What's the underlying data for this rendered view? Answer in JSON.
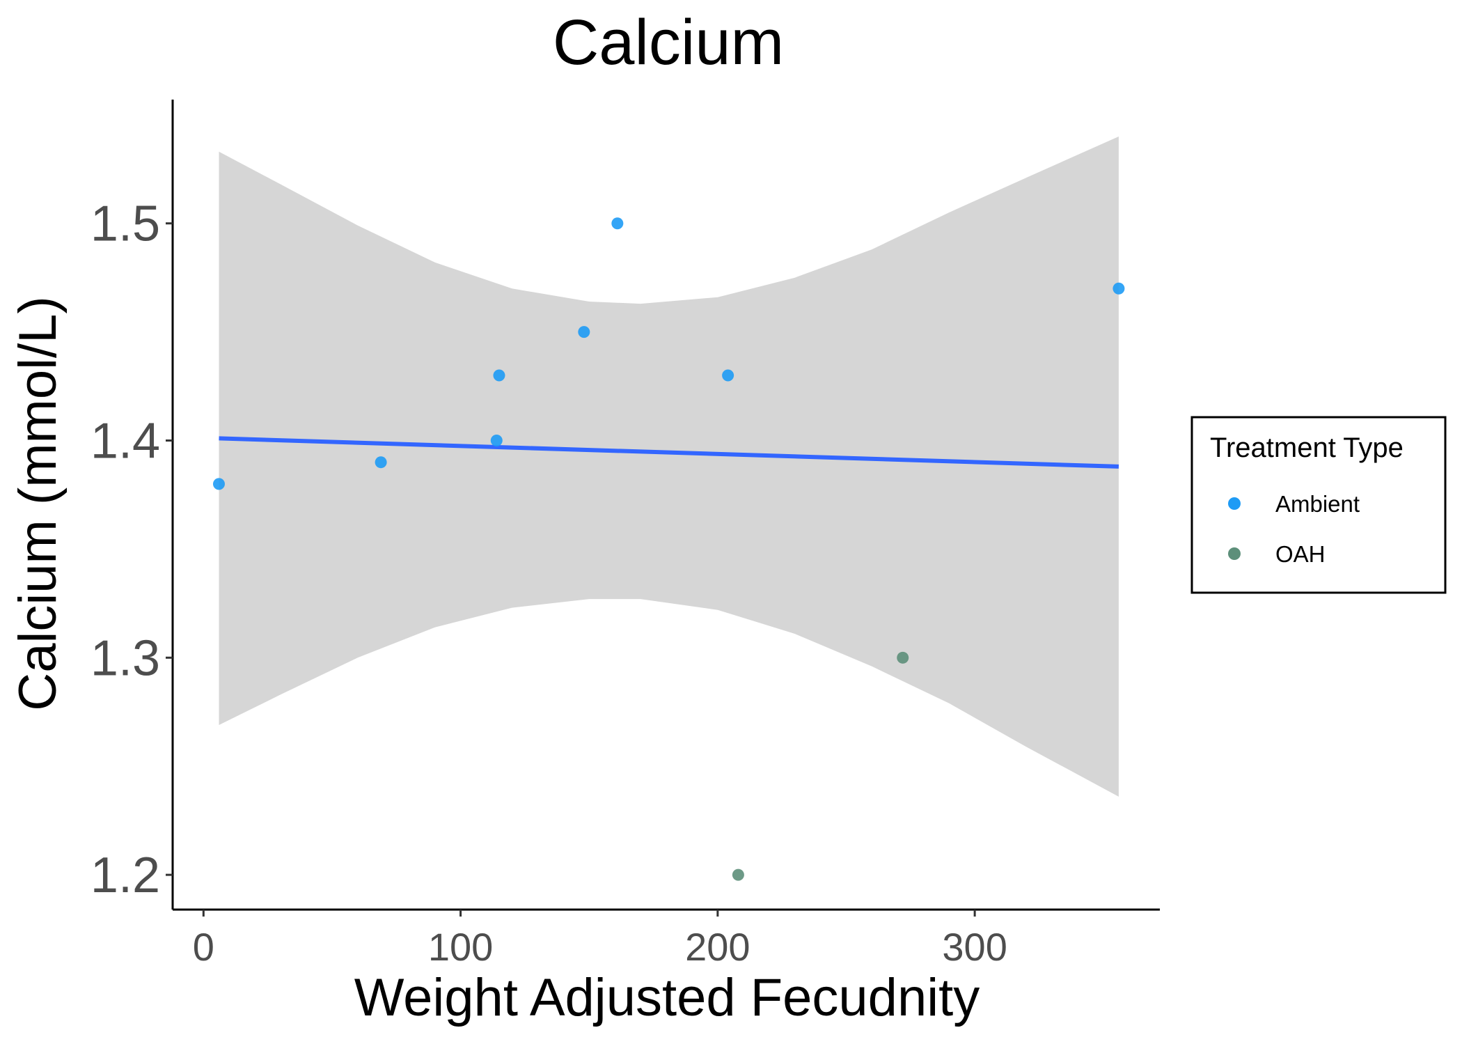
{
  "chart_data": {
    "type": "scatter",
    "title": "Calcium",
    "xlabel": "Weight Adjusted Fecudnity",
    "ylabel": "Calcium (mmol/L)",
    "xlim": [
      -12,
      372
    ],
    "ylim": [
      1.184,
      1.557
    ],
    "x_ticks": [
      0,
      100,
      200,
      300
    ],
    "x_tick_labels": [
      "0",
      "100",
      "200",
      "300"
    ],
    "y_ticks": [
      1.2,
      1.3,
      1.4,
      1.5
    ],
    "y_tick_labels": [
      "1.2",
      "1.3",
      "1.4",
      "1.5"
    ],
    "grid": false,
    "legend": {
      "title": "Treatment Type",
      "placement": "right",
      "entries": [
        {
          "label": "Ambient",
          "color": "#1e9bf5"
        },
        {
          "label": "OAH",
          "color": "#5d8f7a"
        }
      ]
    },
    "series": [
      {
        "name": "Ambient",
        "color": "#1e9bf5",
        "points": [
          {
            "x": 6,
            "y": 1.38
          },
          {
            "x": 69,
            "y": 1.39
          },
          {
            "x": 114,
            "y": 1.4
          },
          {
            "x": 115,
            "y": 1.43
          },
          {
            "x": 148,
            "y": 1.45
          },
          {
            "x": 161,
            "y": 1.5
          },
          {
            "x": 204,
            "y": 1.43
          },
          {
            "x": 356,
            "y": 1.47
          }
        ]
      },
      {
        "name": "OAH",
        "color": "#5d8f7a",
        "points": [
          {
            "x": 208,
            "y": 1.2
          },
          {
            "x": 272,
            "y": 1.3
          }
        ]
      }
    ],
    "trend_line": {
      "method": "linear",
      "color": "#3366ff",
      "points": [
        {
          "x": 6,
          "y": 1.401
        },
        {
          "x": 356,
          "y": 1.388
        }
      ]
    },
    "confidence_band": {
      "color": "#d6d6d6",
      "upper": [
        {
          "x": 6,
          "y": 1.533
        },
        {
          "x": 30,
          "y": 1.518
        },
        {
          "x": 60,
          "y": 1.499
        },
        {
          "x": 90,
          "y": 1.482
        },
        {
          "x": 120,
          "y": 1.47
        },
        {
          "x": 150,
          "y": 1.464
        },
        {
          "x": 170,
          "y": 1.463
        },
        {
          "x": 200,
          "y": 1.466
        },
        {
          "x": 230,
          "y": 1.475
        },
        {
          "x": 260,
          "y": 1.488
        },
        {
          "x": 290,
          "y": 1.505
        },
        {
          "x": 320,
          "y": 1.521
        },
        {
          "x": 356,
          "y": 1.54
        }
      ],
      "lower": [
        {
          "x": 6,
          "y": 1.269
        },
        {
          "x": 30,
          "y": 1.283
        },
        {
          "x": 60,
          "y": 1.3
        },
        {
          "x": 90,
          "y": 1.314
        },
        {
          "x": 120,
          "y": 1.323
        },
        {
          "x": 150,
          "y": 1.327
        },
        {
          "x": 170,
          "y": 1.327
        },
        {
          "x": 200,
          "y": 1.322
        },
        {
          "x": 230,
          "y": 1.311
        },
        {
          "x": 260,
          "y": 1.296
        },
        {
          "x": 290,
          "y": 1.279
        },
        {
          "x": 320,
          "y": 1.259
        },
        {
          "x": 356,
          "y": 1.236
        }
      ]
    }
  }
}
